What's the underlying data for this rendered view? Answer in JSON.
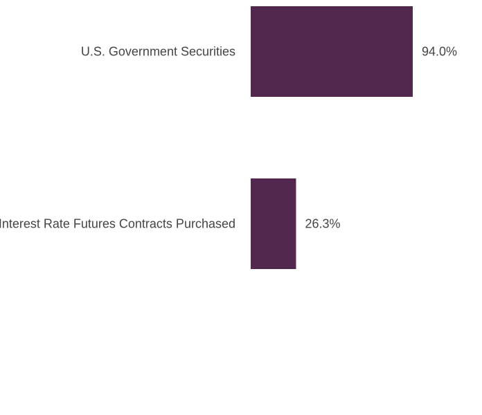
{
  "chart_data": {
    "type": "bar",
    "orientation": "horizontal",
    "categories": [
      "U.S. Government Securities",
      "Interest Rate Futures Contracts Purchased"
    ],
    "values": [
      94.0,
      26.3
    ],
    "value_labels": [
      "94.0%",
      "26.3%"
    ],
    "unit": "%",
    "xlim": [
      0,
      100
    ],
    "grid": false,
    "legend": "none",
    "colors": {
      "bar": "#53284f",
      "text": "#444444"
    }
  }
}
